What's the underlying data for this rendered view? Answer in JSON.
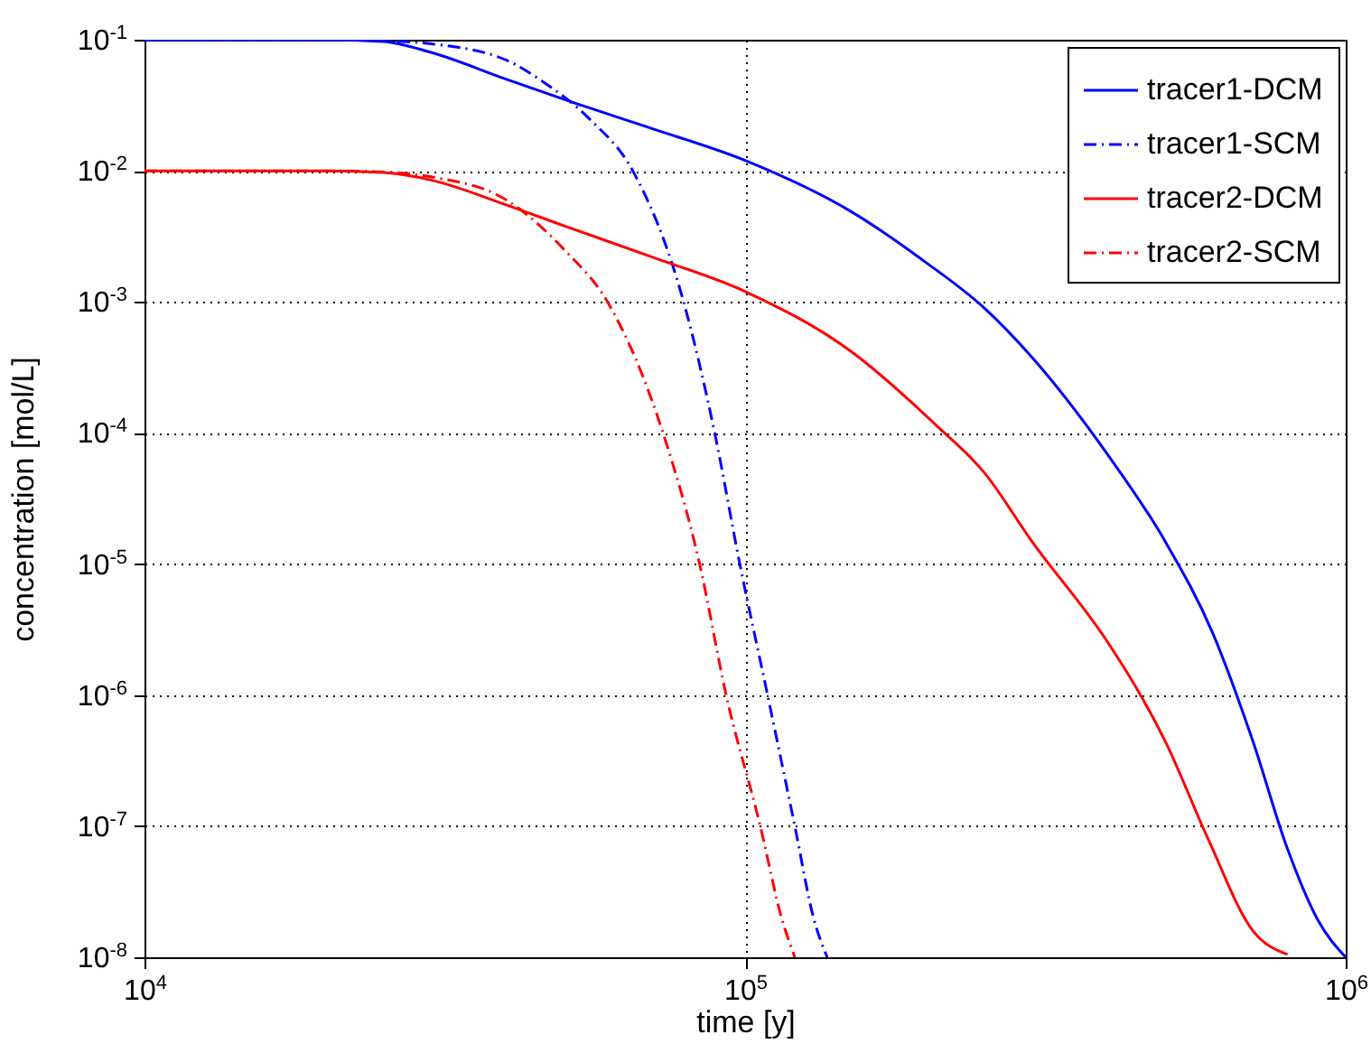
{
  "chart_data": {
    "type": "line",
    "xlabel": "time [y]",
    "ylabel": "concentration [mol/L]",
    "log": "xy",
    "grid": true,
    "legend": "top right",
    "marker": "none",
    "xlim": [
      10000,
      1000000
    ],
    "ylim": [
      1e-08,
      0.1
    ],
    "xticks": [
      {
        "value": 10000,
        "label": "10$^{4}$"
      },
      {
        "value": 100000,
        "label": "10$^{5}$"
      },
      {
        "value": 1000000,
        "label": "10$^{6}$"
      }
    ],
    "yticks": [
      {
        "value": 1e-08,
        "label": "10$^{-8}$"
      },
      {
        "value": 1e-07,
        "label": "10$^{-7}$"
      },
      {
        "value": 1e-06,
        "label": "10$^{-6}$"
      },
      {
        "value": 1e-05,
        "label": "10$^{-5}$"
      },
      {
        "value": 0.0001,
        "label": "10$^{-4}$"
      },
      {
        "value": 0.001,
        "label": "10$^{-3}$"
      },
      {
        "value": 0.01,
        "label": "10$^{-2}$"
      },
      {
        "value": 0.1,
        "label": "10$^{-1}$"
      }
    ],
    "series": [
      {
        "name": "tracer1-DCM",
        "color": "#0000ff",
        "line_style": "solid",
        "x": [
          10000,
          20000,
          25000,
          30000,
          40000,
          50000,
          70000,
          100000,
          150000,
          200000,
          250000,
          300000,
          400000,
          500000,
          600000,
          700000,
          800000,
          900000,
          1000000
        ],
        "values": [
          0.1,
          0.1,
          0.097,
          0.08,
          0.05,
          0.035,
          0.021,
          0.012,
          0.0049,
          0.002,
          0.0009,
          0.00038,
          7e-05,
          1.5e-05,
          3e-06,
          4.5e-07,
          6.7e-08,
          1.9e-08,
          1e-08
        ]
      },
      {
        "name": "tracer1-SCM",
        "color": "#0000ff",
        "line_style": "dashed",
        "x": [
          10000,
          20000,
          25000,
          30000,
          40000,
          46000,
          55000,
          65000,
          79000,
          89000,
          98000,
          109000,
          121000,
          130000,
          137000
        ],
        "values": [
          0.1,
          0.1,
          0.098,
          0.093,
          0.07,
          0.048,
          0.025,
          0.01,
          0.001,
          0.0001,
          1e-05,
          1e-06,
          1e-07,
          2e-08,
          1e-08
        ]
      },
      {
        "name": "tracer2-DCM",
        "color": "#ff0000",
        "line_style": "solid",
        "x": [
          10000,
          20000,
          25000,
          30000,
          40000,
          50000,
          70000,
          100000,
          150000,
          210000,
          250000,
          300000,
          400000,
          450000,
          500000,
          590000,
          700000,
          800000
        ],
        "values": [
          0.01,
          0.01,
          0.0097,
          0.0085,
          0.0055,
          0.0038,
          0.0022,
          0.0012,
          0.00042,
          0.00011,
          5e-05,
          1.5e-05,
          2.6e-06,
          1.1e-06,
          4.5e-07,
          8e-08,
          1.6e-08,
          1.05e-08
        ]
      },
      {
        "name": "tracer2-SCM",
        "color": "#ff0000",
        "line_style": "dashed",
        "x": [
          10000,
          20000,
          25000,
          30000,
          40000,
          50000,
          59000,
          73000,
          84000,
          93000,
          106000,
          115000,
          121000
        ],
        "values": [
          0.01,
          0.01,
          0.0098,
          0.009,
          0.006,
          0.0025,
          0.001,
          0.0001,
          1e-05,
          1e-06,
          1e-07,
          2e-08,
          1e-08
        ]
      }
    ]
  }
}
